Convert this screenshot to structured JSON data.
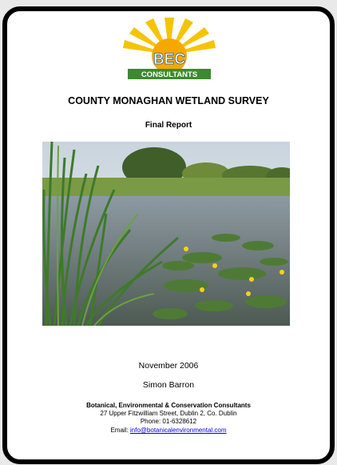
{
  "logo": {
    "name": "BEC",
    "tagline": "CONSULTANTS"
  },
  "title": "COUNTY MONAGHAN WETLAND SURVEY",
  "subtitle": "Final Report",
  "date": "November 2006",
  "author": "Simon Barron",
  "organisation": {
    "name": "Botanical, Environmental & Conservation Consultants",
    "address": "27 Upper Fitzwilliam Street, Dublin 2, Co. Dublin",
    "phone": "Phone: 01-6328612",
    "email_label": "Email:",
    "email": "info@botanicalenvironmental.com"
  }
}
